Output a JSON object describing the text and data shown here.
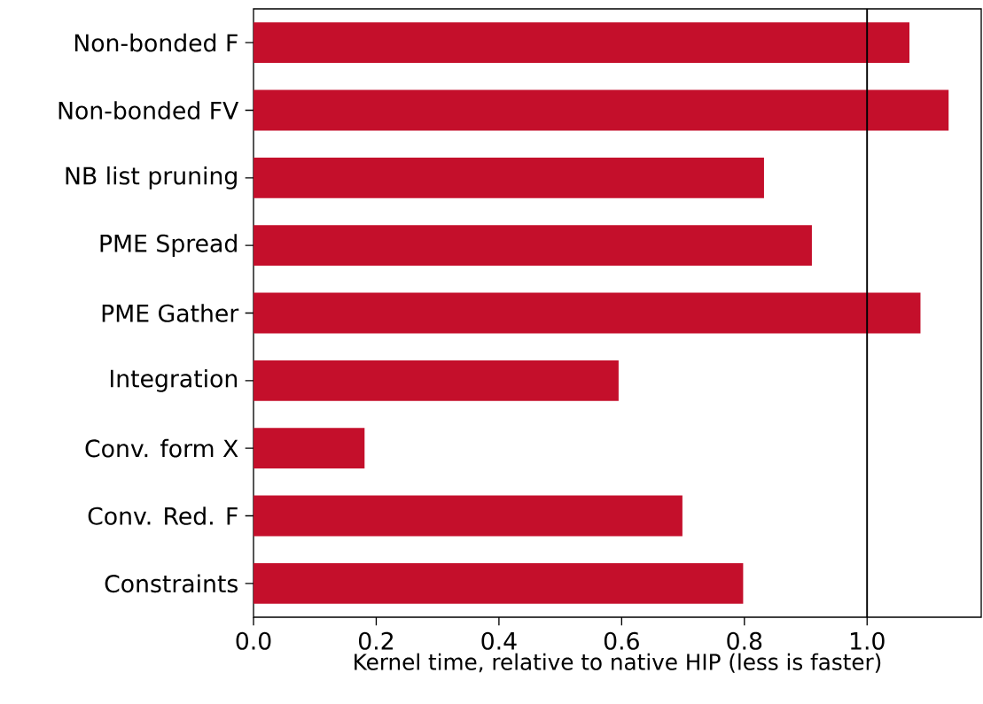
{
  "chart_data": {
    "type": "bar",
    "orientation": "horizontal",
    "categories": [
      "Non-bonded F",
      "Non-bonded FV",
      "NB list pruning",
      "PME Spread",
      "PME Gather",
      "Integration",
      "Conv. form X",
      "Conv. Red. F",
      "Constraints"
    ],
    "values": [
      1.069,
      1.133,
      0.832,
      0.91,
      1.087,
      0.595,
      0.181,
      0.699,
      0.798
    ],
    "color": "#c40f2b",
    "xlabel": "Kernel time, relative to native HIP (less is faster)",
    "xlim": [
      0,
      1.186
    ],
    "xticks": [
      {
        "value": 0,
        "label": "0.0"
      },
      {
        "value": 0.2,
        "label": "0.2"
      },
      {
        "value": 0.4,
        "label": "0.4"
      },
      {
        "value": 0.6,
        "label": "0.6"
      },
      {
        "value": 0.8,
        "label": "0.8"
      },
      {
        "value": 1.0,
        "label": "1.0"
      }
    ],
    "ref_lines": [
      {
        "axis": "x",
        "value": 1.0,
        "color": "#000000"
      }
    ]
  }
}
